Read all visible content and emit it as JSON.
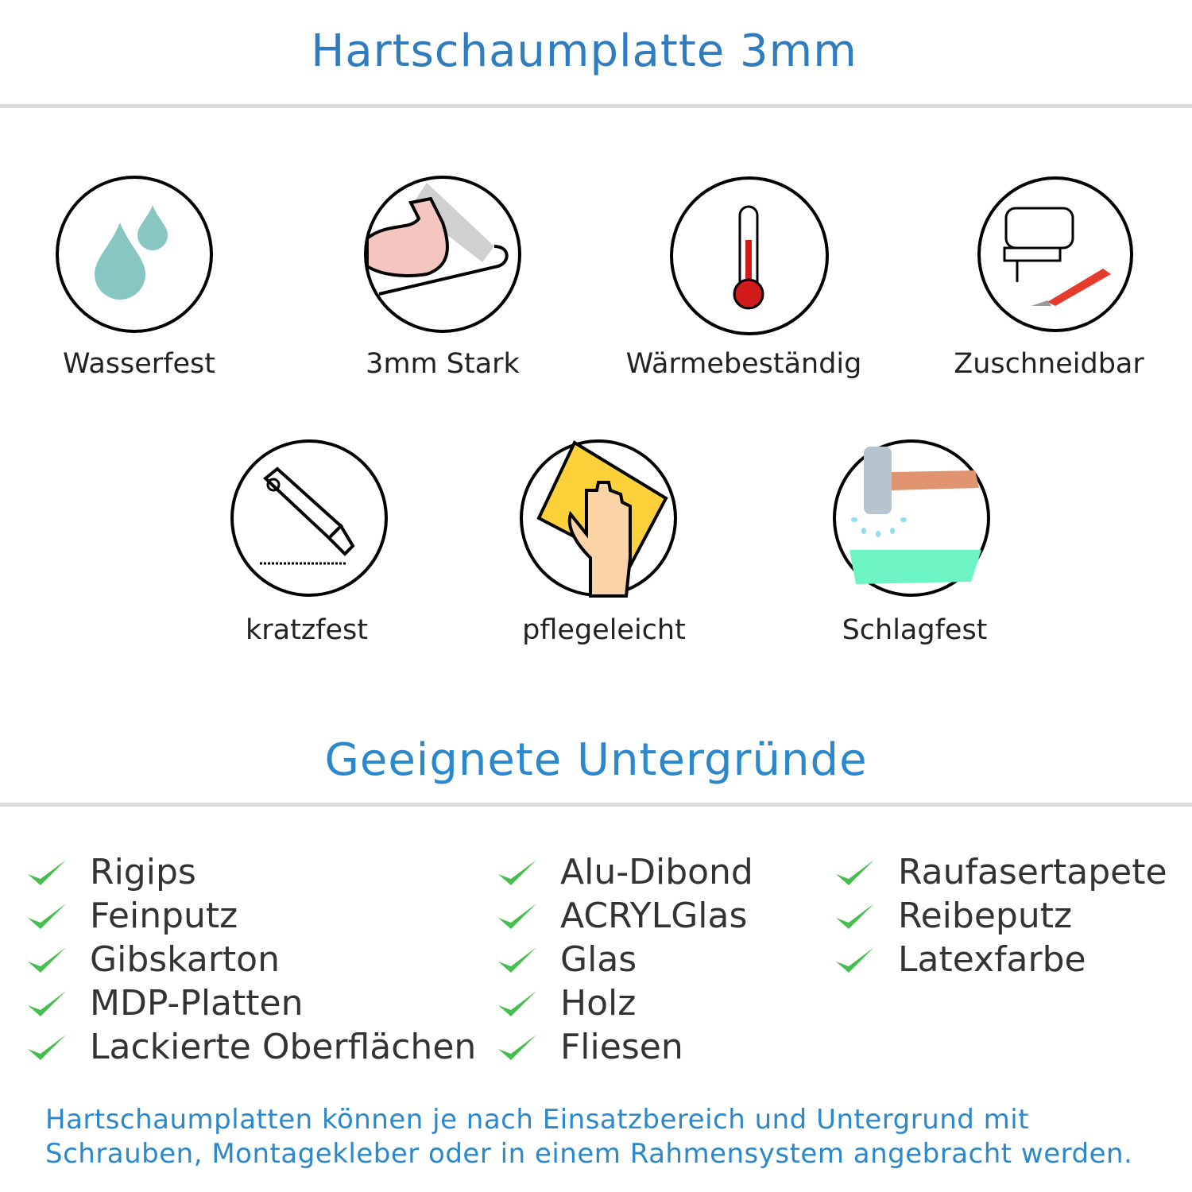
{
  "title": "Hartschaumplatte 3mm",
  "features": [
    {
      "label": "Wasserfest",
      "icon": "water-drops-icon"
    },
    {
      "label": "3mm Stark",
      "icon": "strong-arm-icon"
    },
    {
      "label": "Wärmebeständig",
      "icon": "thermometer-icon"
    },
    {
      "label": "Zuschneidbar",
      "icon": "jigsaw-icon"
    },
    {
      "label": "kratzfest",
      "icon": "cutter-knife-icon"
    },
    {
      "label": "pflegeleicht",
      "icon": "cleaning-hand-icon"
    },
    {
      "label": "Schlagfest",
      "icon": "hammer-icon"
    }
  ],
  "surfaces_title": "Geeignete Untergründe",
  "surfaces": [
    [
      "Rigips",
      "Feinputz",
      "Gibskarton",
      "MDP-Platten",
      "Lackierte Oberflächen"
    ],
    [
      "Alu-Dibond",
      "ACRYLGlas",
      "Glas",
      "Holz",
      "Fliesen"
    ],
    [
      "Raufasertapete",
      "Reibeputz",
      "Latexfarbe"
    ]
  ],
  "footer": [
    "Hartschaumplatten können je nach Einsatzbereich und Untergrund mit",
    "Schrauben, Montagekleber oder in einem Rahmensystem angebracht werden."
  ],
  "colors": {
    "heading": "#2f7cbf",
    "check": "#45bd4f",
    "text": "#333333"
  }
}
